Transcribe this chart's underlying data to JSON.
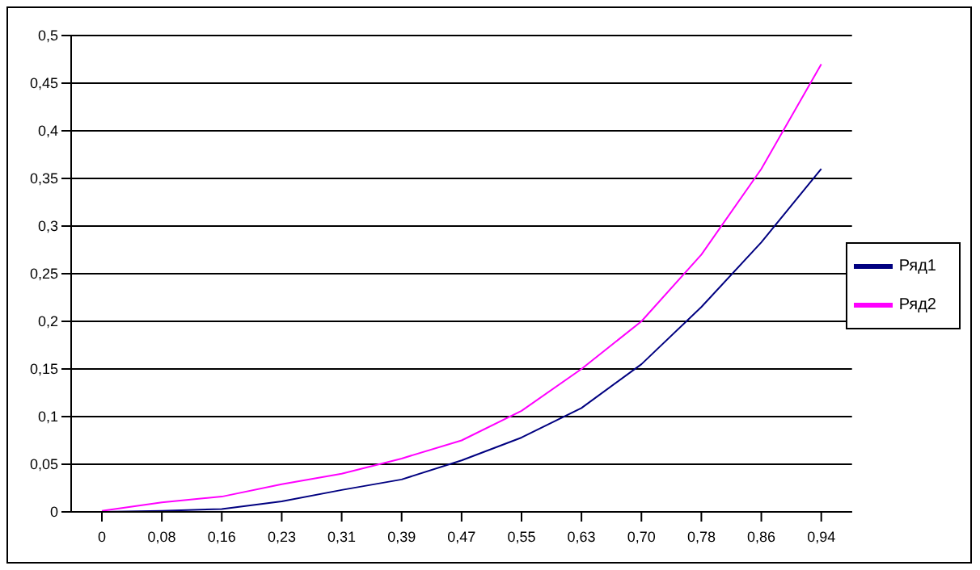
{
  "chart_data": {
    "type": "line",
    "categories": [
      "0",
      "0,08",
      "0,16",
      "0,23",
      "0,31",
      "0,39",
      "0,47",
      "0,55",
      "0,63",
      "0,70",
      "0,78",
      "0,86",
      "0,94"
    ],
    "series": [
      {
        "name": "Ряд1",
        "color": "#000080",
        "values": [
          0,
          0.001,
          0.003,
          0.011,
          0.023,
          0.034,
          0.054,
          0.078,
          0.109,
          0.155,
          0.215,
          0.283,
          0.36
        ]
      },
      {
        "name": "Ряд2",
        "color": "#ff00ff",
        "values": [
          0.001,
          0.01,
          0.016,
          0.029,
          0.04,
          0.056,
          0.075,
          0.106,
          0.15,
          0.2,
          0.27,
          0.36,
          0.47
        ]
      }
    ],
    "ylim": [
      0,
      0.5
    ],
    "yticks": [
      {
        "value": 0,
        "label": "0"
      },
      {
        "value": 0.05,
        "label": "0,05"
      },
      {
        "value": 0.1,
        "label": "0,1"
      },
      {
        "value": 0.15,
        "label": "0,15"
      },
      {
        "value": 0.2,
        "label": "0,2"
      },
      {
        "value": 0.25,
        "label": "0,25"
      },
      {
        "value": 0.3,
        "label": "0,3"
      },
      {
        "value": 0.35,
        "label": "0,35"
      },
      {
        "value": 0.4,
        "label": "0,4"
      },
      {
        "value": 0.45,
        "label": "0,45"
      },
      {
        "value": 0.5,
        "label": "0,5"
      }
    ],
    "grid": "y",
    "legend": "right",
    "marker": "none",
    "line_style": "solid"
  }
}
